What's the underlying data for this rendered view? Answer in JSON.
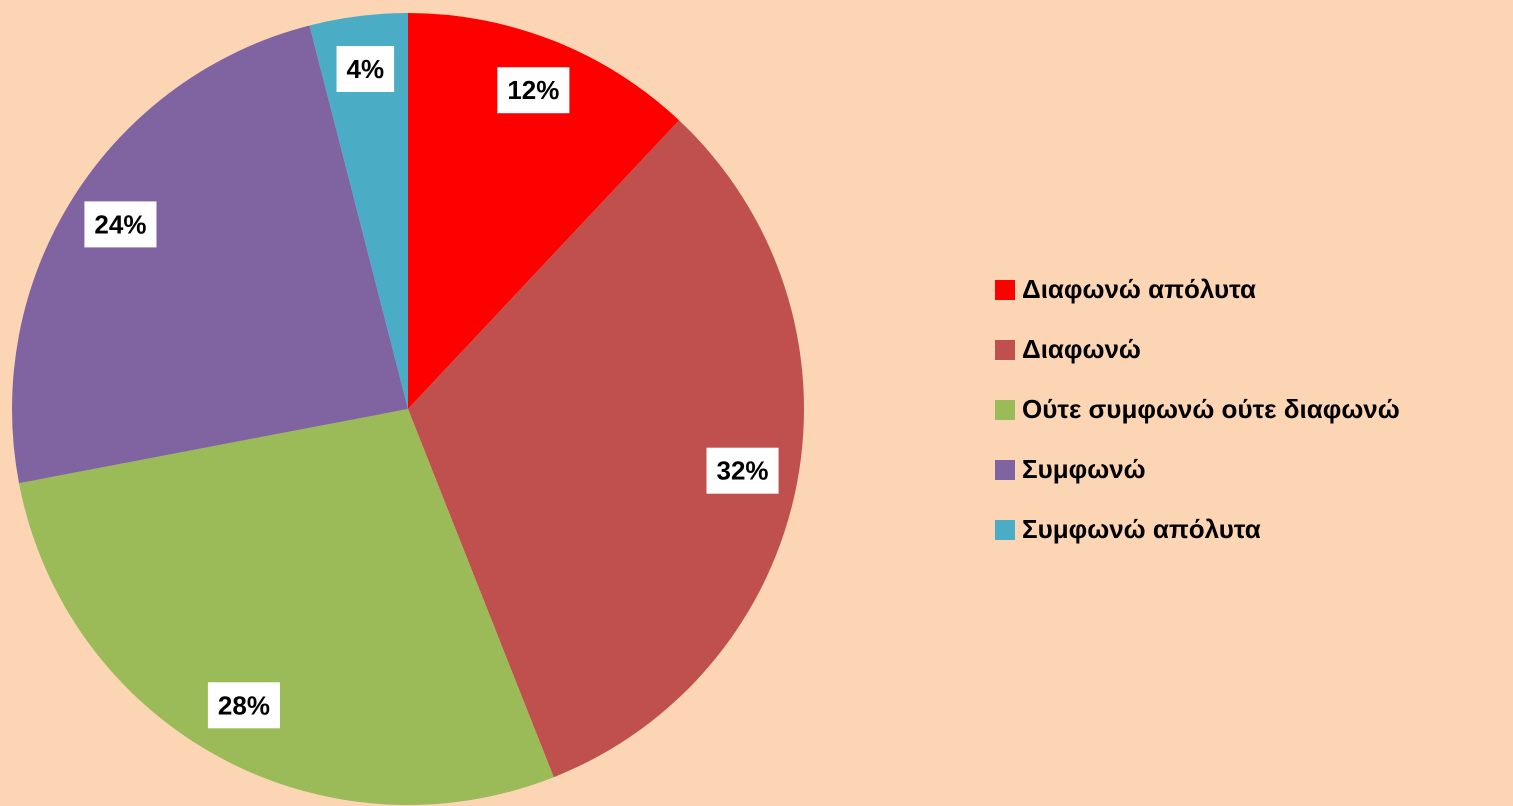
{
  "chart_data": {
    "type": "pie",
    "categories": [
      "Διαφωνώ απόλυτα",
      "Διαφωνώ",
      "Ούτε συμφωνώ ούτε διαφωνώ",
      "Συμφωνώ",
      "Συμφωνώ απόλυτα"
    ],
    "values": [
      12,
      32,
      28,
      24,
      4
    ],
    "value_labels": [
      "12%",
      "32%",
      "28%",
      "24%",
      "4%"
    ],
    "colors": [
      "#ff0000",
      "#c0504d",
      "#9bbb59",
      "#8064a2",
      "#4bacc6"
    ],
    "legend": "right"
  }
}
